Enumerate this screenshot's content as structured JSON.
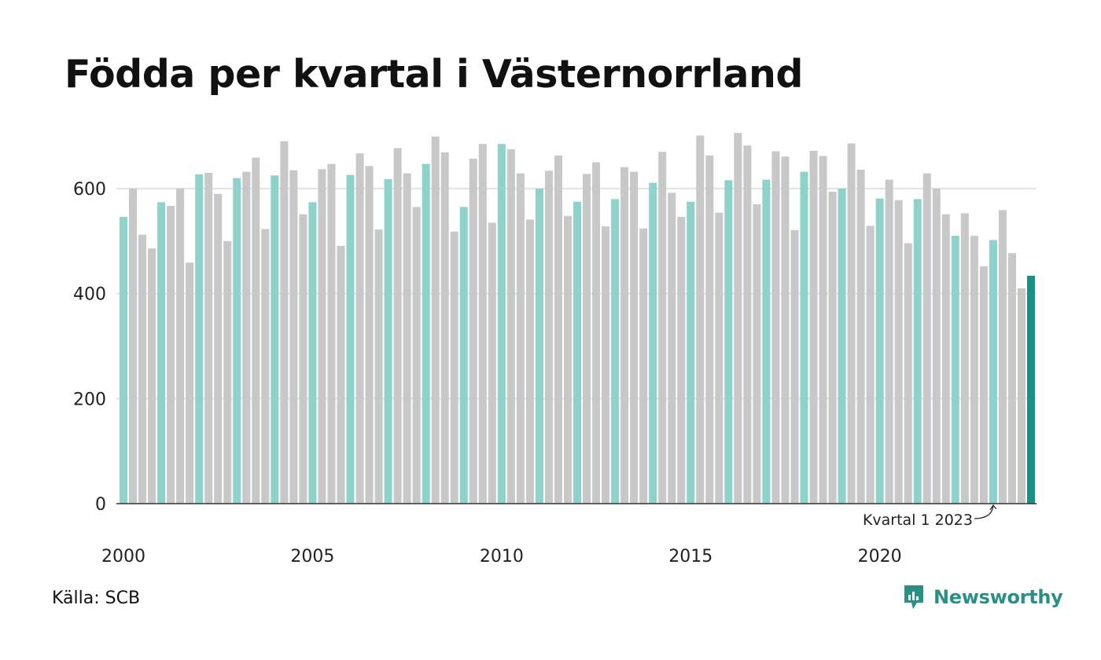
{
  "title": "Födda per kvartal i Västernorrland",
  "source": "Källa: SCB",
  "brand": {
    "name": "Newsworthy",
    "logo_icon": "newsworthy-bar-chart-icon"
  },
  "colors": {
    "q1": "#8dd3cc",
    "other": "#c8c8c8",
    "highlight": "#1a9186",
    "grid": "#e3e3e3",
    "axis": "#333333",
    "brand": "#2a8f85"
  },
  "chart_data": {
    "type": "bar",
    "title": "Födda per kvartal i Västernorrland",
    "xlabel": "",
    "ylabel": "",
    "ylim": [
      0,
      720
    ],
    "yticks": [
      0,
      200,
      400,
      600
    ],
    "grid": true,
    "x_start": {
      "year": 2000,
      "quarter": 1
    },
    "xtick_labels": [
      "2000",
      "2005",
      "2010",
      "2015",
      "2020"
    ],
    "annotation": {
      "text": "Kvartal 1 2023",
      "target": "2023 Q1"
    },
    "values": [
      546,
      600,
      512,
      486,
      574,
      567,
      600,
      459,
      627,
      630,
      590,
      500,
      620,
      632,
      659,
      523,
      625,
      690,
      635,
      551,
      574,
      637,
      647,
      491,
      626,
      667,
      643,
      522,
      618,
      677,
      629,
      565,
      647,
      699,
      669,
      518,
      565,
      657,
      685,
      535,
      685,
      675,
      629,
      541,
      600,
      634,
      663,
      548,
      575,
      628,
      650,
      528,
      580,
      641,
      632,
      524,
      611,
      670,
      592,
      546,
      575,
      701,
      663,
      554,
      616,
      706,
      682,
      570,
      617,
      671,
      661,
      521,
      632,
      672,
      662,
      594,
      600,
      686,
      636,
      529,
      581,
      617,
      578,
      496,
      580,
      629,
      600,
      551,
      510,
      553,
      510,
      452,
      502,
      559,
      477,
      410,
      434
    ]
  }
}
